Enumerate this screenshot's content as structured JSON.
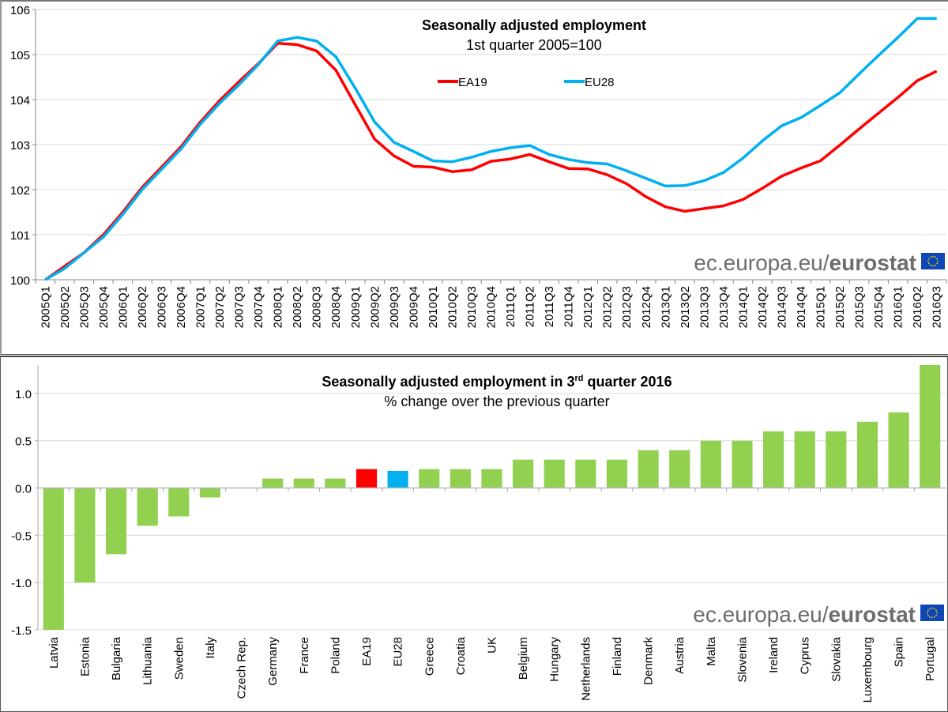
{
  "chart_data": [
    {
      "type": "line",
      "title": "Seasonally adjusted employment",
      "subtitle": "1st quarter 2005=100",
      "xlabel": "",
      "ylabel": "",
      "ylim": [
        100,
        106
      ],
      "yticks": [
        "100",
        "101",
        "102",
        "103",
        "104",
        "105",
        "106"
      ],
      "grid": true,
      "legend_position": "top-center",
      "x": [
        "2005Q1",
        "2005Q2",
        "2005Q3",
        "2005Q4",
        "2006Q1",
        "2006Q2",
        "2006Q3",
        "2006Q4",
        "2007Q1",
        "2007Q2",
        "2007Q3",
        "2007Q4",
        "2008Q1",
        "2008Q2",
        "2008Q3",
        "2008Q4",
        "2009Q1",
        "2009Q2",
        "2009Q3",
        "2009Q4",
        "2010Q1",
        "2010Q2",
        "2010Q3",
        "2010Q4",
        "2011Q1",
        "2011Q2",
        "2011Q3",
        "2011Q4",
        "2012Q1",
        "2012Q2",
        "2012Q3",
        "2012Q4",
        "2013Q1",
        "2013Q2",
        "2013Q3",
        "2013Q4",
        "2014Q1",
        "2014Q2",
        "2014Q3",
        "2014Q4",
        "2015Q1",
        "2015Q2",
        "2015Q3",
        "2015Q4",
        "2016Q1",
        "2016Q2",
        "2016Q3"
      ],
      "series": [
        {
          "name": "EA19",
          "color": "#ff0000",
          "values": [
            100.0,
            100.3,
            100.6,
            101.0,
            101.5,
            102.05,
            102.5,
            102.95,
            103.5,
            103.98,
            104.4,
            104.8,
            105.25,
            105.22,
            105.08,
            104.65,
            103.88,
            103.12,
            102.75,
            102.52,
            102.5,
            102.4,
            102.44,
            102.63,
            102.68,
            102.78,
            102.62,
            102.47,
            102.46,
            102.33,
            102.13,
            101.84,
            101.62,
            101.52,
            101.58,
            101.64,
            101.78,
            102.03,
            102.3,
            102.48,
            102.64,
            102.99,
            103.35,
            103.7,
            104.05,
            104.42,
            104.63
          ]
        },
        {
          "name": "EU28",
          "color": "#00b0f0",
          "values": [
            100.0,
            100.25,
            100.6,
            100.95,
            101.45,
            102.0,
            102.45,
            102.9,
            103.45,
            103.92,
            104.33,
            104.78,
            105.3,
            105.38,
            105.3,
            104.95,
            104.25,
            103.5,
            103.05,
            102.85,
            102.64,
            102.62,
            102.72,
            102.85,
            102.93,
            102.98,
            102.78,
            102.67,
            102.6,
            102.57,
            102.42,
            102.25,
            102.08,
            102.09,
            102.2,
            102.38,
            102.7,
            103.08,
            103.42,
            103.6,
            103.87,
            104.15,
            104.57,
            104.98,
            105.38,
            105.8,
            105.8
          ]
        }
      ]
    },
    {
      "type": "bar",
      "title": "Seasonally adjusted employment in 3",
      "title_sup": "rd",
      "title_end": " quarter 2016",
      "subtitle": "% change over the previous quarter",
      "xlabel": "",
      "ylabel": "",
      "ylim": [
        -1.5,
        1.3
      ],
      "yticks": [
        "-1.5",
        "-1.0",
        "-0.5",
        "0.0",
        "0.5",
        "1.0"
      ],
      "grid": true,
      "categories": [
        "Latvia",
        "Estonia",
        "Bulgaria",
        "Lithuania",
        "Sweden",
        "Italy",
        "Czech Rep.",
        "Germany",
        "France",
        "Poland",
        "EA19",
        "EU28",
        "Greece",
        "Croatia",
        "UK",
        "Belgium",
        "Hungary",
        "Netherlands",
        "Finland",
        "Denmark",
        "Austria",
        "Malta",
        "Slovenia",
        "Ireland",
        "Cyprus",
        "Slovakia",
        "Luxembourg",
        "Spain",
        "Portugal"
      ],
      "values": [
        -1.5,
        -1.0,
        -0.7,
        -0.4,
        -0.3,
        -0.1,
        0.0,
        0.1,
        0.1,
        0.1,
        0.2,
        0.18,
        0.2,
        0.2,
        0.2,
        0.3,
        0.3,
        0.3,
        0.3,
        0.4,
        0.4,
        0.5,
        0.5,
        0.6,
        0.6,
        0.6,
        0.7,
        0.8,
        1.3
      ],
      "colors": {
        "default": "#92d050",
        "EA19": "#ff0000",
        "EU28": "#00b0f0"
      }
    }
  ],
  "branding": {
    "light": "ec.europa.eu/",
    "bold": "eurostat",
    "flag_color": "#0e47b5",
    "star_color": "#ffdd00"
  }
}
